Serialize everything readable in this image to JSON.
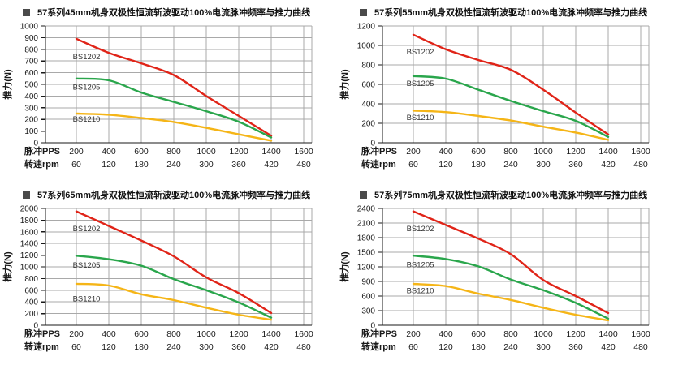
{
  "page": {
    "background": "#ffffff"
  },
  "colors": {
    "series_red": "#e02418",
    "series_green": "#2aa64c",
    "series_yellow": "#f5b517",
    "grid_line": "#a9a9a9",
    "axis_line": "#1a1a1a",
    "tick_text": "#1a1a1a",
    "series_label_text": "#333333",
    "title_text": "#111111",
    "title_bullet": "#4a4a4a"
  },
  "axis_headers": {
    "pulse": "脉冲PPS",
    "speed": "转速rpm"
  },
  "chart_data": [
    {
      "type": "line",
      "title": "57系列45mm机身双极性恒流斩波驱动100%电流脉冲频率与推力曲线",
      "ylabel": "推力(N)",
      "ylim": [
        0,
        1000
      ],
      "ystep": 100,
      "grid": true,
      "legend": "inline-labels",
      "x_pulse_pps": [
        200,
        400,
        600,
        800,
        1000,
        1200,
        1400,
        1600
      ],
      "x_speed_rpm": [
        60,
        120,
        180,
        240,
        300,
        360,
        420,
        480
      ],
      "x": [
        200,
        400,
        600,
        800,
        1000,
        1200,
        1400
      ],
      "series": [
        {
          "name": "BS1202",
          "color": "series_red",
          "values": [
            890,
            770,
            680,
            580,
            400,
            230,
            60
          ],
          "label_at": [
            178,
            735
          ]
        },
        {
          "name": "BS1205",
          "color": "series_green",
          "values": [
            550,
            535,
            430,
            350,
            270,
            180,
            45
          ],
          "label_at": [
            178,
            475
          ]
        },
        {
          "name": "BS1210",
          "color": "series_yellow",
          "values": [
            250,
            240,
            212,
            178,
            128,
            72,
            18
          ],
          "label_at": [
            178,
            200
          ]
        }
      ]
    },
    {
      "type": "line",
      "title": "57系列55mm机身双极性恒流斩波驱动100%电流脉冲频率与推力曲线",
      "ylabel": "推力(N)",
      "ylim": [
        0,
        1200
      ],
      "ystep": 200,
      "grid": true,
      "legend": "inline-labels",
      "x_pulse_pps": [
        200,
        400,
        600,
        800,
        1000,
        1200,
        1400,
        1600
      ],
      "x_speed_rpm": [
        60,
        120,
        180,
        240,
        300,
        360,
        420,
        480
      ],
      "x": [
        200,
        400,
        600,
        800,
        1000,
        1200,
        1400
      ],
      "series": [
        {
          "name": "BS1202",
          "color": "series_red",
          "values": [
            1110,
            960,
            850,
            750,
            545,
            310,
            85
          ],
          "label_at": [
            158,
            935
          ]
        },
        {
          "name": "BS1205",
          "color": "series_green",
          "values": [
            685,
            658,
            545,
            430,
            325,
            225,
            60
          ],
          "label_at": [
            158,
            610
          ]
        },
        {
          "name": "BS1210",
          "color": "series_yellow",
          "values": [
            330,
            315,
            275,
            228,
            165,
            105,
            30
          ],
          "label_at": [
            158,
            260
          ]
        }
      ]
    },
    {
      "type": "line",
      "title": "57系列65mm机身双极性恒流斩波驱动100%电流脉冲频率与推力曲线",
      "ylabel": "推力(N)",
      "ylim": [
        0,
        2000
      ],
      "ystep": 200,
      "grid": true,
      "legend": "inline-labels",
      "x_pulse_pps": [
        200,
        400,
        600,
        800,
        1000,
        1200,
        1400,
        1600
      ],
      "x_speed_rpm": [
        60,
        120,
        180,
        240,
        300,
        360,
        420,
        480
      ],
      "x": [
        200,
        400,
        600,
        800,
        1000,
        1200,
        1400
      ],
      "series": [
        {
          "name": "BS1202",
          "color": "series_red",
          "values": [
            1950,
            1700,
            1450,
            1180,
            820,
            550,
            210
          ],
          "label_at": [
            178,
            1650
          ]
        },
        {
          "name": "BS1205",
          "color": "series_green",
          "values": [
            1190,
            1130,
            1020,
            790,
            600,
            390,
            130
          ],
          "label_at": [
            178,
            1030
          ]
        },
        {
          "name": "BS1210",
          "color": "series_yellow",
          "values": [
            710,
            680,
            530,
            430,
            300,
            180,
            95
          ],
          "label_at": [
            178,
            450
          ]
        }
      ]
    },
    {
      "type": "line",
      "title": "57系列75mm机身双极性恒流斩波驱动100%电流脉冲频率与推力曲线",
      "ylabel": "推力(N)",
      "ylim": [
        0,
        2400
      ],
      "ystep": 300,
      "grid": true,
      "legend": "inline-labels",
      "x_pulse_pps": [
        200,
        400,
        600,
        800,
        1000,
        1200,
        1400,
        1600
      ],
      "x_speed_rpm": [
        60,
        120,
        180,
        240,
        300,
        360,
        420,
        480
      ],
      "x": [
        200,
        400,
        600,
        800,
        1000,
        1200,
        1400
      ],
      "series": [
        {
          "name": "BS1202",
          "color": "series_red",
          "values": [
            2340,
            2060,
            1780,
            1460,
            930,
            600,
            250
          ],
          "label_at": [
            158,
            1980
          ]
        },
        {
          "name": "BS1205",
          "color": "series_green",
          "values": [
            1430,
            1360,
            1210,
            940,
            720,
            460,
            135
          ],
          "label_at": [
            158,
            1240
          ]
        },
        {
          "name": "BS1210",
          "color": "series_yellow",
          "values": [
            850,
            805,
            650,
            520,
            360,
            215,
            100
          ],
          "label_at": [
            158,
            710
          ]
        }
      ]
    }
  ]
}
